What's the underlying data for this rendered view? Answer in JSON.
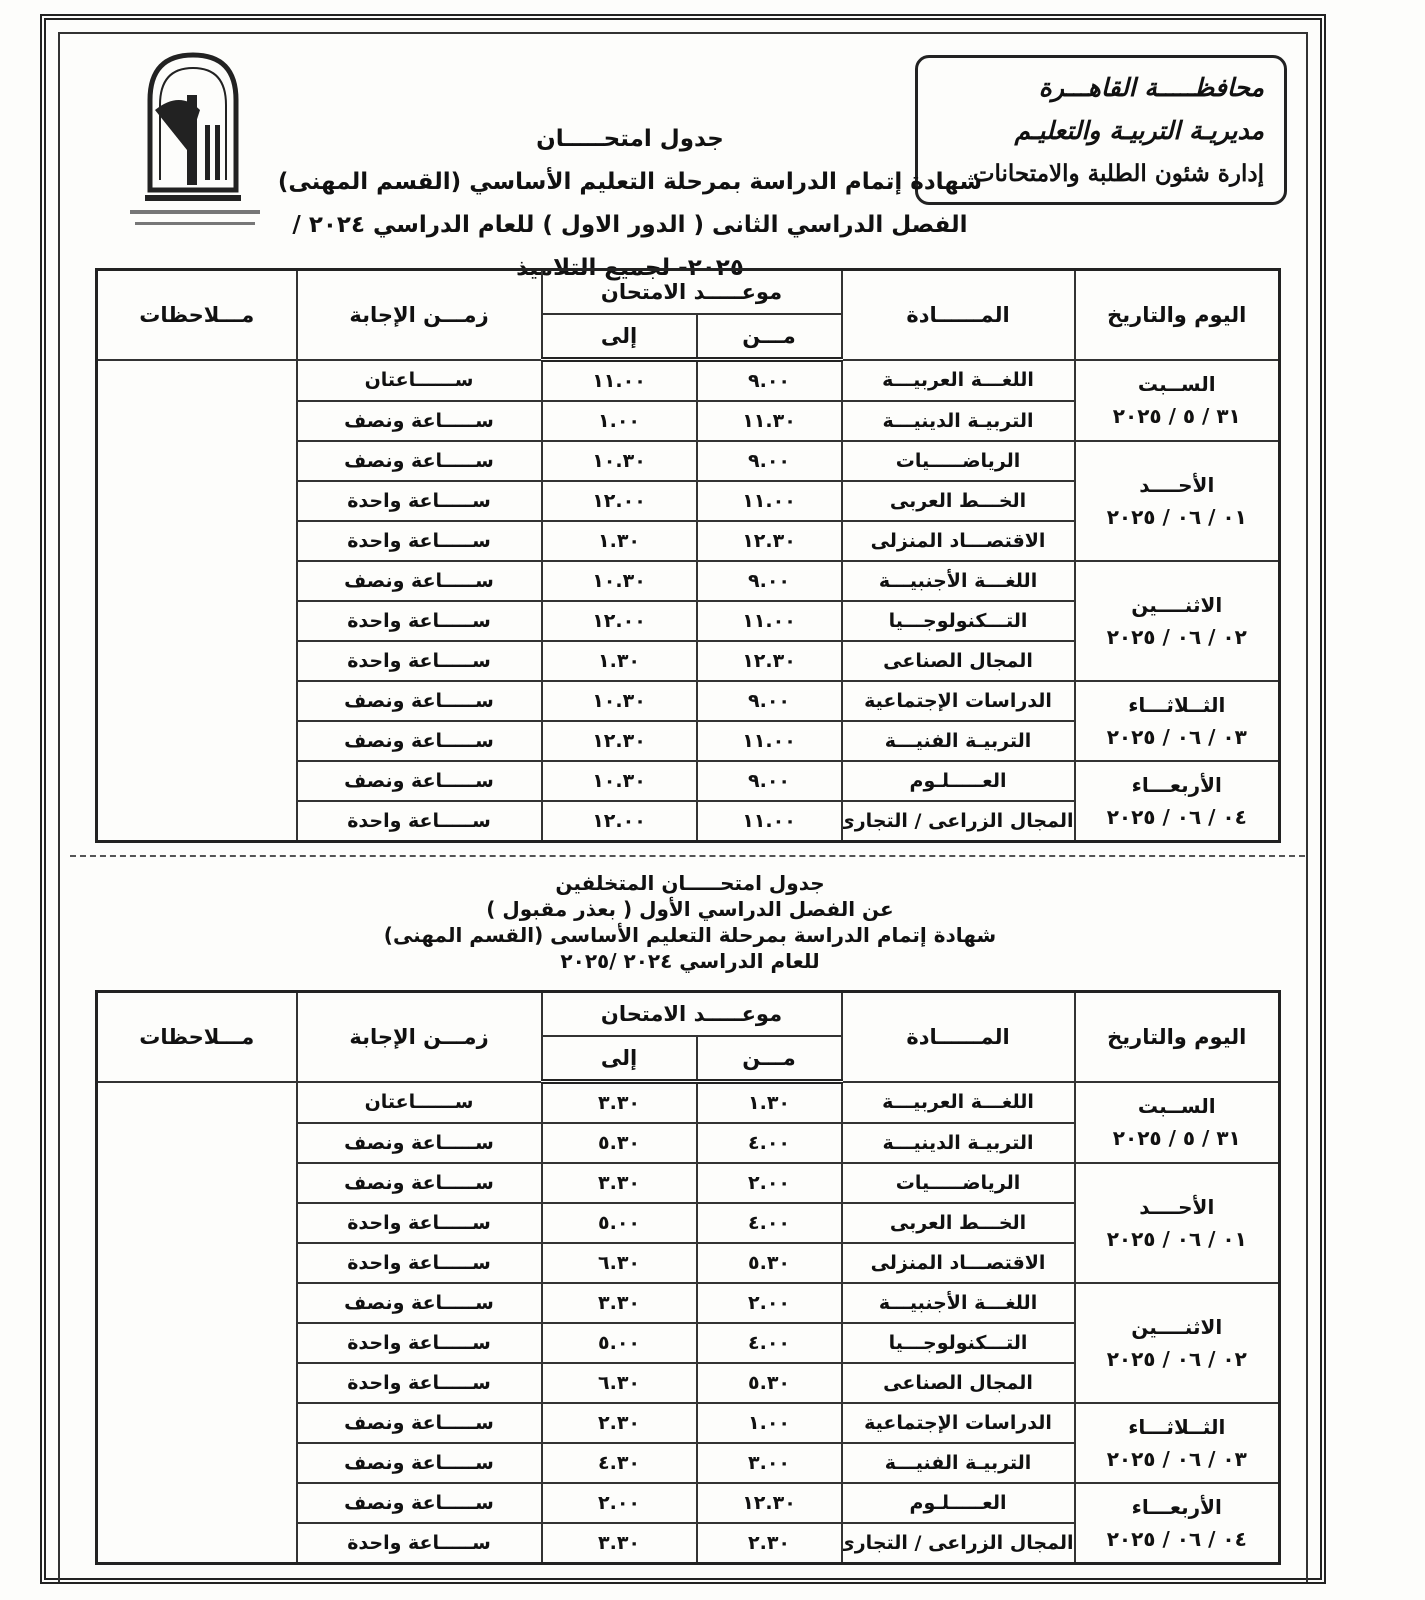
{
  "header": {
    "org": [
      "محافظـــــة القاهـــرة",
      "مديريـة التربيـة والتعليـم",
      "إدارة شئون الطلبة والامتحانات"
    ]
  },
  "sections": [
    {
      "title": [
        "جدول امتحـــــان",
        "شهادة إتمام الدراسة بمرحلة التعليم الأساسي (القسم المهنى)",
        "الفصل الدراسي الثانى ( الدور الاول ) للعام الدراسي ٢٠٢٤ / ٢٠٢٥- لجميع التلاميذ"
      ],
      "table": {
        "columns": {
          "day": "اليوم والتاريخ",
          "subject": "المــــــادة",
          "time": "موعـــــد الامتحان",
          "from": "مـــن",
          "to": "إلى",
          "duration": "زمـــن الإجابة",
          "notes": "مـــلاحظات"
        },
        "groups": [
          {
            "day": "الســبت",
            "date": "٣١ / ٥ / ٢٠٢٥",
            "rows": [
              {
                "subject": "اللغـــة العربيـــة",
                "from": "٩.٠٠",
                "to": "١١.٠٠",
                "duration": "ســــــاعتان"
              },
              {
                "subject": "التربيـة الدينيـــة",
                "from": "١١.٣٠",
                "to": "١.٠٠",
                "duration": "ســـــاعة ونصف"
              }
            ]
          },
          {
            "day": "الأحــــد",
            "date": "٠١ / ٠٦ / ٢٠٢٥",
            "rows": [
              {
                "subject": "الرياضـــــيات",
                "from": "٩.٠٠",
                "to": "١٠.٣٠",
                "duration": "ســـــاعة ونصف"
              },
              {
                "subject": "الخـــط العربى",
                "from": "١١.٠٠",
                "to": "١٢.٠٠",
                "duration": "ســـــاعة واحدة"
              },
              {
                "subject": "الاقتصـــاد المنزلى",
                "from": "١٢.٣٠",
                "to": "١.٣٠",
                "duration": "ســـــاعة واحدة"
              }
            ]
          },
          {
            "day": "الاثنــــين",
            "date": "٠٢ / ٠٦ / ٢٠٢٥",
            "rows": [
              {
                "subject": "اللغـــة الأجنبيـــة",
                "from": "٩.٠٠",
                "to": "١٠.٣٠",
                "duration": "ســـــاعة ونصف"
              },
              {
                "subject": "التـــكنولوجـــيا",
                "from": "١١.٠٠",
                "to": "١٢.٠٠",
                "duration": "ســـــاعة واحدة"
              },
              {
                "subject": "المجال الصناعى",
                "from": "١٢.٣٠",
                "to": "١.٣٠",
                "duration": "ســـــاعة واحدة"
              }
            ]
          },
          {
            "day": "الثــلاثـــاء",
            "date": "٠٣ / ٠٦ / ٢٠٢٥",
            "rows": [
              {
                "subject": "الدراسات الإجتماعية",
                "from": "٩.٠٠",
                "to": "١٠.٣٠",
                "duration": "ســـــاعة ونصف"
              },
              {
                "subject": "التربيـة الفنيـــة",
                "from": "١١.٠٠",
                "to": "١٢.٣٠",
                "duration": "ســـــاعة ونصف"
              }
            ]
          },
          {
            "day": "الأربعـــاء",
            "date": "٠٤ / ٠٦ / ٢٠٢٥",
            "rows": [
              {
                "subject": "العـــــلـوم",
                "from": "٩.٠٠",
                "to": "١٠.٣٠",
                "duration": "ســـــاعة ونصف"
              },
              {
                "subject": "المجال الزراعى / التجارى",
                "from": "١١.٠٠",
                "to": "١٢.٠٠",
                "duration": "ســـــاعة واحدة"
              }
            ]
          }
        ]
      }
    },
    {
      "title": [
        "جدول امتحـــــان المتخلفين",
        "عن الفصل الدراسي الأول ( بعذر مقبول )",
        "شهادة إتمام الدراسة بمرحلة التعليم الأساسى (القسم المهنى)",
        "للعام الدراسي ٢٠٢٤ /٢٠٢٥"
      ],
      "table": {
        "columns": {
          "day": "اليوم والتاريخ",
          "subject": "المــــــادة",
          "time": "موعـــــد الامتحان",
          "from": "مـــن",
          "to": "إلى",
          "duration": "زمـــن الإجابة",
          "notes": "مـــلاحظات"
        },
        "groups": [
          {
            "day": "الســبت",
            "date": "٣١ / ٥ / ٢٠٢٥",
            "rows": [
              {
                "subject": "اللغـــة العربيـــة",
                "from": "١.٣٠",
                "to": "٣.٣٠",
                "duration": "ســــــاعتان"
              },
              {
                "subject": "التربيـة الدينيـــة",
                "from": "٤.٠٠",
                "to": "٥.٣٠",
                "duration": "ســـــاعة ونصف"
              }
            ]
          },
          {
            "day": "الأحــــد",
            "date": "٠١ / ٠٦ / ٢٠٢٥",
            "rows": [
              {
                "subject": "الرياضـــــيات",
                "from": "٢.٠٠",
                "to": "٣.٣٠",
                "duration": "ســـــاعة ونصف"
              },
              {
                "subject": "الخـــط العربى",
                "from": "٤.٠٠",
                "to": "٥.٠٠",
                "duration": "ســـــاعة واحدة"
              },
              {
                "subject": "الاقتصـــاد المنزلى",
                "from": "٥.٣٠",
                "to": "٦.٣٠",
                "duration": "ســـــاعة واحدة"
              }
            ]
          },
          {
            "day": "الاثنــــين",
            "date": "٠٢ / ٠٦ / ٢٠٢٥",
            "rows": [
              {
                "subject": "اللغـــة الأجنبيـــة",
                "from": "٢.٠٠",
                "to": "٣.٣٠",
                "duration": "ســـــاعة ونصف"
              },
              {
                "subject": "التـــكنولوجـــيا",
                "from": "٤.٠٠",
                "to": "٥.٠٠",
                "duration": "ســـــاعة واحدة"
              },
              {
                "subject": "المجال الصناعى",
                "from": "٥.٣٠",
                "to": "٦.٣٠",
                "duration": "ســـــاعة واحدة"
              }
            ]
          },
          {
            "day": "الثــلاثـــاء",
            "date": "٠٣ / ٠٦ / ٢٠٢٥",
            "rows": [
              {
                "subject": "الدراسات الإجتماعية",
                "from": "١.٠٠",
                "to": "٢.٣٠",
                "duration": "ســـــاعة ونصف"
              },
              {
                "subject": "التربيـة الفنيـــة",
                "from": "٣.٠٠",
                "to": "٤.٣٠",
                "duration": "ســـــاعة ونصف"
              }
            ]
          },
          {
            "day": "الأربعـــاء",
            "date": "٠٤ / ٠٦ / ٢٠٢٥",
            "rows": [
              {
                "subject": "العـــــلـوم",
                "from": "١٢.٣٠",
                "to": "٢.٠٠",
                "duration": "ســـــاعة ونصف"
              },
              {
                "subject": "المجال الزراعى / التجارى",
                "from": "٢.٣٠",
                "to": "٣.٣٠",
                "duration": "ســـــاعة واحدة"
              }
            ]
          }
        ]
      }
    }
  ]
}
